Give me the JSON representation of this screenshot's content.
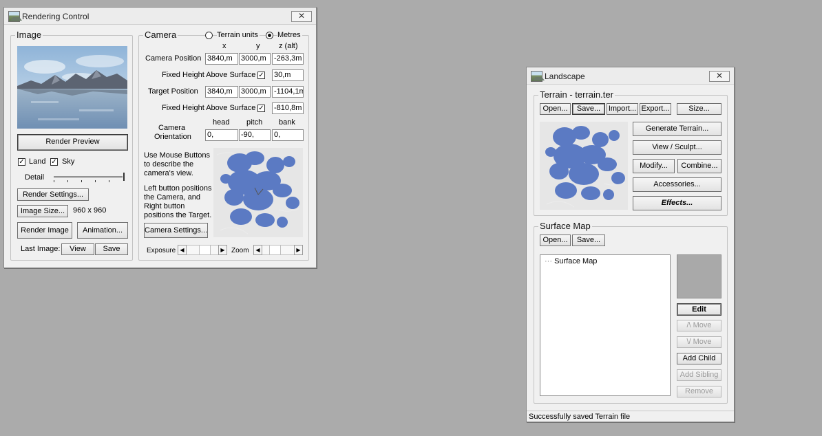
{
  "rendering_control": {
    "title": "Rendering Control",
    "close_glyph": "✕",
    "image_group": {
      "legend": "Image",
      "render_preview": "Render Preview",
      "land_label": "Land",
      "sky_label": "Sky",
      "land_checked": true,
      "sky_checked": true,
      "detail_label": "Detail",
      "detail_level": 1.0,
      "render_settings": "Render Settings...",
      "image_size": "Image Size...",
      "image_size_value": "960 x 960",
      "render_image": "Render Image",
      "animation": "Animation...",
      "last_image_label": "Last Image:",
      "view": "View",
      "save": "Save"
    },
    "camera_group": {
      "legend": "Camera",
      "units_terrain": "Terrain units",
      "units_metres": "Metres",
      "selected_unit": "Metres",
      "col_x": "x",
      "col_y": "y",
      "col_z": "z (alt)",
      "camera_position_label": "Camera Position",
      "camera_position": [
        "3840,m",
        "3000,m",
        "-263,3m"
      ],
      "fixed_height_label": "Fixed Height Above Surface",
      "camera_fixed_height": "30,m",
      "target_position_label": "Target Position",
      "target_position": [
        "3840,m",
        "3000,m",
        "-1104,1m"
      ],
      "target_fixed_height": "-810,8m",
      "col_head": "head",
      "col_pitch": "pitch",
      "col_bank": "bank",
      "orientation_label_1": "Camera",
      "orientation_label_2": "Orientation",
      "orientation": [
        "0,",
        "-90,",
        "0,"
      ],
      "help_1": "Use Mouse Buttons to describe the camera's view.",
      "help_2": "Left button positions the Camera, and Right button positions the Target.",
      "camera_settings": "Camera Settings...",
      "exposure_label": "Exposure",
      "zoom_label": "Zoom"
    }
  },
  "landscape": {
    "title": "Landscape",
    "close_glyph": "✕",
    "terrain_group": {
      "legend": "Terrain - terrain.ter",
      "open": "Open...",
      "save": "Save...",
      "import": "Import...",
      "export": "Export...",
      "size": "Size...",
      "generate_terrain": "Generate Terrain...",
      "view_sculpt": "View / Sculpt...",
      "modify": "Modify...",
      "combine": "Combine...",
      "accessories": "Accessories...",
      "effects": "Effects..."
    },
    "surface_group": {
      "legend": "Surface Map",
      "open": "Open...",
      "save": "Save...",
      "tree_item": "Surface Map",
      "edit": "Edit",
      "move_up": "/\\ Move",
      "move_down": "\\/ Move",
      "add_child": "Add Child",
      "add_sibling": "Add Sibling",
      "remove": "Remove"
    },
    "status": "Successfully saved Terrain file"
  }
}
